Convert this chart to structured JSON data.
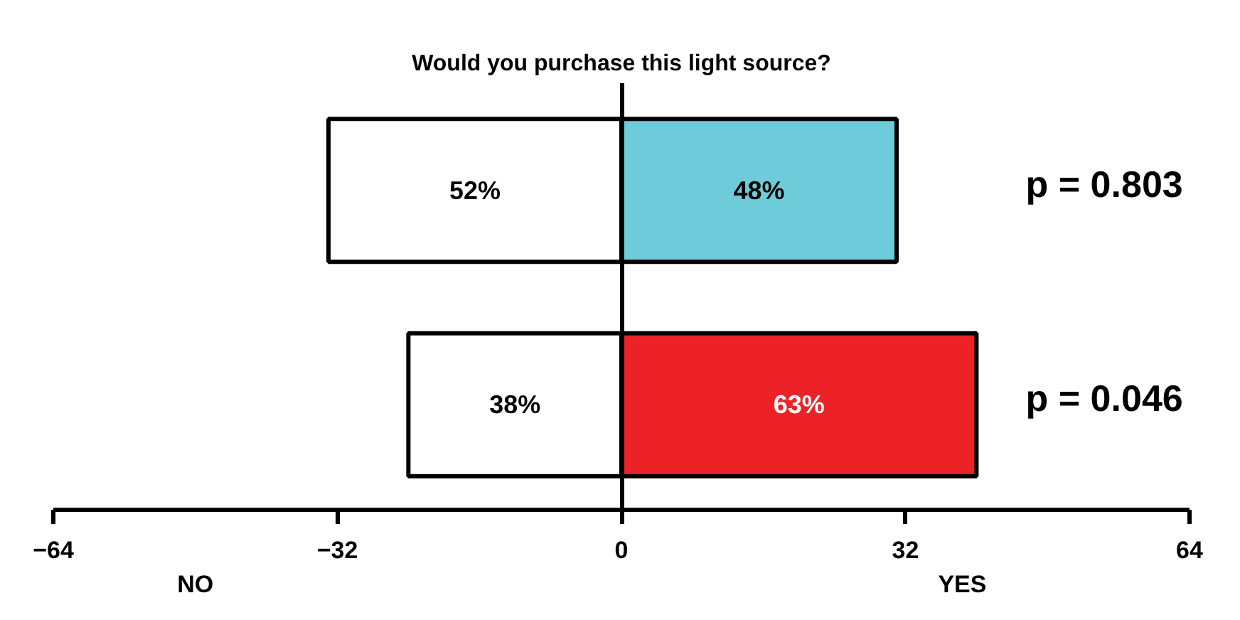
{
  "chart_data": {
    "type": "bar",
    "orientation": "horizontal",
    "stacked": true,
    "title": "Would you purchase this light source?",
    "categories": [
      null,
      null
    ],
    "series": [
      {
        "color": "#ffffff",
        "values": [
          -33,
          -24
        ]
      },
      {
        "colors": [
          "#6ecbd9",
          "#ec2227"
        ],
        "values": [
          31,
          40
        ]
      }
    ],
    "xlim": [
      -64,
      64
    ],
    "xticks": [
      -64,
      -32,
      0,
      32,
      64
    ],
    "annotations": [
      "p = 0.803",
      "p = 0.046",
      "NO",
      "YES",
      "52%",
      "38%",
      "48%",
      "63%"
    ]
  }
}
